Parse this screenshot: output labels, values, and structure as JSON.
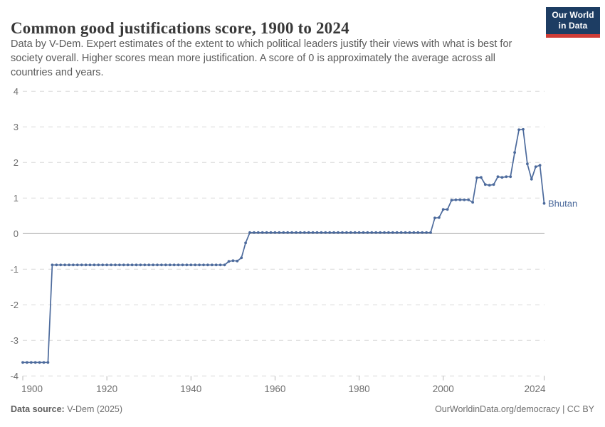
{
  "header": {
    "title": "Common good justifications score, 1900 to 2024",
    "subtitle_lines": [
      "Data by V-Dem. Expert estimates of the extent to which political leaders justify their views with what is best for",
      "society overall. Higher scores mean more justification. A score of 0 is approximately the average across all",
      "countries and years."
    ],
    "logo": {
      "line1": "Our World",
      "line2": "in Data",
      "bg_color": "#1d3d63",
      "bar_color": "#cf3c36"
    }
  },
  "chart_data": {
    "type": "line",
    "title": "Common good justifications score, 1900 to 2024",
    "xlabel": "",
    "ylabel": "",
    "xlim": [
      1900,
      2024
    ],
    "ylim": [
      -4,
      4
    ],
    "xticks": [
      1900,
      1920,
      1940,
      1960,
      1980,
      2000,
      2024
    ],
    "yticks": [
      4,
      3,
      2,
      1,
      0,
      -1,
      -2,
      -3,
      -4
    ],
    "grid": "horizontal-dashed",
    "zero_line": true,
    "legend_position": "end-of-line-label",
    "line_color": "#4c6a9c",
    "grid_color": "#d9d9d9",
    "zero_line_color": "#a1a1a1",
    "tick_label_color": "#6e6e6e",
    "series": [
      {
        "name": "Bhutan",
        "color": "#4c6a9c",
        "points": [
          [
            1900,
            -3.62
          ],
          [
            1901,
            -3.62
          ],
          [
            1902,
            -3.62
          ],
          [
            1903,
            -3.62
          ],
          [
            1904,
            -3.62
          ],
          [
            1905,
            -3.62
          ],
          [
            1906,
            -3.62
          ],
          [
            1907,
            -0.88
          ],
          [
            1908,
            -0.88
          ],
          [
            1909,
            -0.88
          ],
          [
            1910,
            -0.88
          ],
          [
            1911,
            -0.88
          ],
          [
            1912,
            -0.88
          ],
          [
            1913,
            -0.88
          ],
          [
            1914,
            -0.88
          ],
          [
            1915,
            -0.88
          ],
          [
            1916,
            -0.88
          ],
          [
            1917,
            -0.88
          ],
          [
            1918,
            -0.88
          ],
          [
            1919,
            -0.88
          ],
          [
            1920,
            -0.88
          ],
          [
            1921,
            -0.88
          ],
          [
            1922,
            -0.88
          ],
          [
            1923,
            -0.88
          ],
          [
            1924,
            -0.88
          ],
          [
            1925,
            -0.88
          ],
          [
            1926,
            -0.88
          ],
          [
            1927,
            -0.88
          ],
          [
            1928,
            -0.88
          ],
          [
            1929,
            -0.88
          ],
          [
            1930,
            -0.88
          ],
          [
            1931,
            -0.88
          ],
          [
            1932,
            -0.88
          ],
          [
            1933,
            -0.88
          ],
          [
            1934,
            -0.88
          ],
          [
            1935,
            -0.88
          ],
          [
            1936,
            -0.88
          ],
          [
            1937,
            -0.88
          ],
          [
            1938,
            -0.88
          ],
          [
            1939,
            -0.88
          ],
          [
            1940,
            -0.88
          ],
          [
            1941,
            -0.88
          ],
          [
            1942,
            -0.88
          ],
          [
            1943,
            -0.88
          ],
          [
            1944,
            -0.88
          ],
          [
            1945,
            -0.88
          ],
          [
            1946,
            -0.88
          ],
          [
            1947,
            -0.88
          ],
          [
            1948,
            -0.88
          ],
          [
            1949,
            -0.78
          ],
          [
            1950,
            -0.76
          ],
          [
            1951,
            -0.77
          ],
          [
            1952,
            -0.68
          ],
          [
            1953,
            -0.26
          ],
          [
            1954,
            0.03
          ],
          [
            1955,
            0.03
          ],
          [
            1956,
            0.03
          ],
          [
            1957,
            0.03
          ],
          [
            1958,
            0.03
          ],
          [
            1959,
            0.03
          ],
          [
            1960,
            0.03
          ],
          [
            1961,
            0.03
          ],
          [
            1962,
            0.03
          ],
          [
            1963,
            0.03
          ],
          [
            1964,
            0.03
          ],
          [
            1965,
            0.03
          ],
          [
            1966,
            0.03
          ],
          [
            1967,
            0.03
          ],
          [
            1968,
            0.03
          ],
          [
            1969,
            0.03
          ],
          [
            1970,
            0.03
          ],
          [
            1971,
            0.03
          ],
          [
            1972,
            0.03
          ],
          [
            1973,
            0.03
          ],
          [
            1974,
            0.03
          ],
          [
            1975,
            0.03
          ],
          [
            1976,
            0.03
          ],
          [
            1977,
            0.03
          ],
          [
            1978,
            0.03
          ],
          [
            1979,
            0.03
          ],
          [
            1980,
            0.03
          ],
          [
            1981,
            0.03
          ],
          [
            1982,
            0.03
          ],
          [
            1983,
            0.03
          ],
          [
            1984,
            0.03
          ],
          [
            1985,
            0.03
          ],
          [
            1986,
            0.03
          ],
          [
            1987,
            0.03
          ],
          [
            1988,
            0.03
          ],
          [
            1989,
            0.03
          ],
          [
            1990,
            0.03
          ],
          [
            1991,
            0.03
          ],
          [
            1992,
            0.03
          ],
          [
            1993,
            0.03
          ],
          [
            1994,
            0.03
          ],
          [
            1995,
            0.03
          ],
          [
            1996,
            0.03
          ],
          [
            1997,
            0.03
          ],
          [
            1998,
            0.44
          ],
          [
            1999,
            0.45
          ],
          [
            2000,
            0.68
          ],
          [
            2001,
            0.68
          ],
          [
            2002,
            0.94
          ],
          [
            2003,
            0.95
          ],
          [
            2004,
            0.95
          ],
          [
            2005,
            0.95
          ],
          [
            2006,
            0.95
          ],
          [
            2007,
            0.88
          ],
          [
            2008,
            1.57
          ],
          [
            2009,
            1.58
          ],
          [
            2010,
            1.38
          ],
          [
            2011,
            1.36
          ],
          [
            2012,
            1.38
          ],
          [
            2013,
            1.6
          ],
          [
            2014,
            1.58
          ],
          [
            2015,
            1.6
          ],
          [
            2016,
            1.6
          ],
          [
            2017,
            2.28
          ],
          [
            2018,
            2.92
          ],
          [
            2019,
            2.93
          ],
          [
            2020,
            1.96
          ],
          [
            2021,
            1.53
          ],
          [
            2022,
            1.88
          ],
          [
            2023,
            1.92
          ],
          [
            2024,
            0.85
          ]
        ]
      }
    ]
  },
  "footer": {
    "source_label": "Data source:",
    "source_value": " V-Dem (2025)",
    "credit": "OurWorldinData.org/democracy | CC BY"
  }
}
